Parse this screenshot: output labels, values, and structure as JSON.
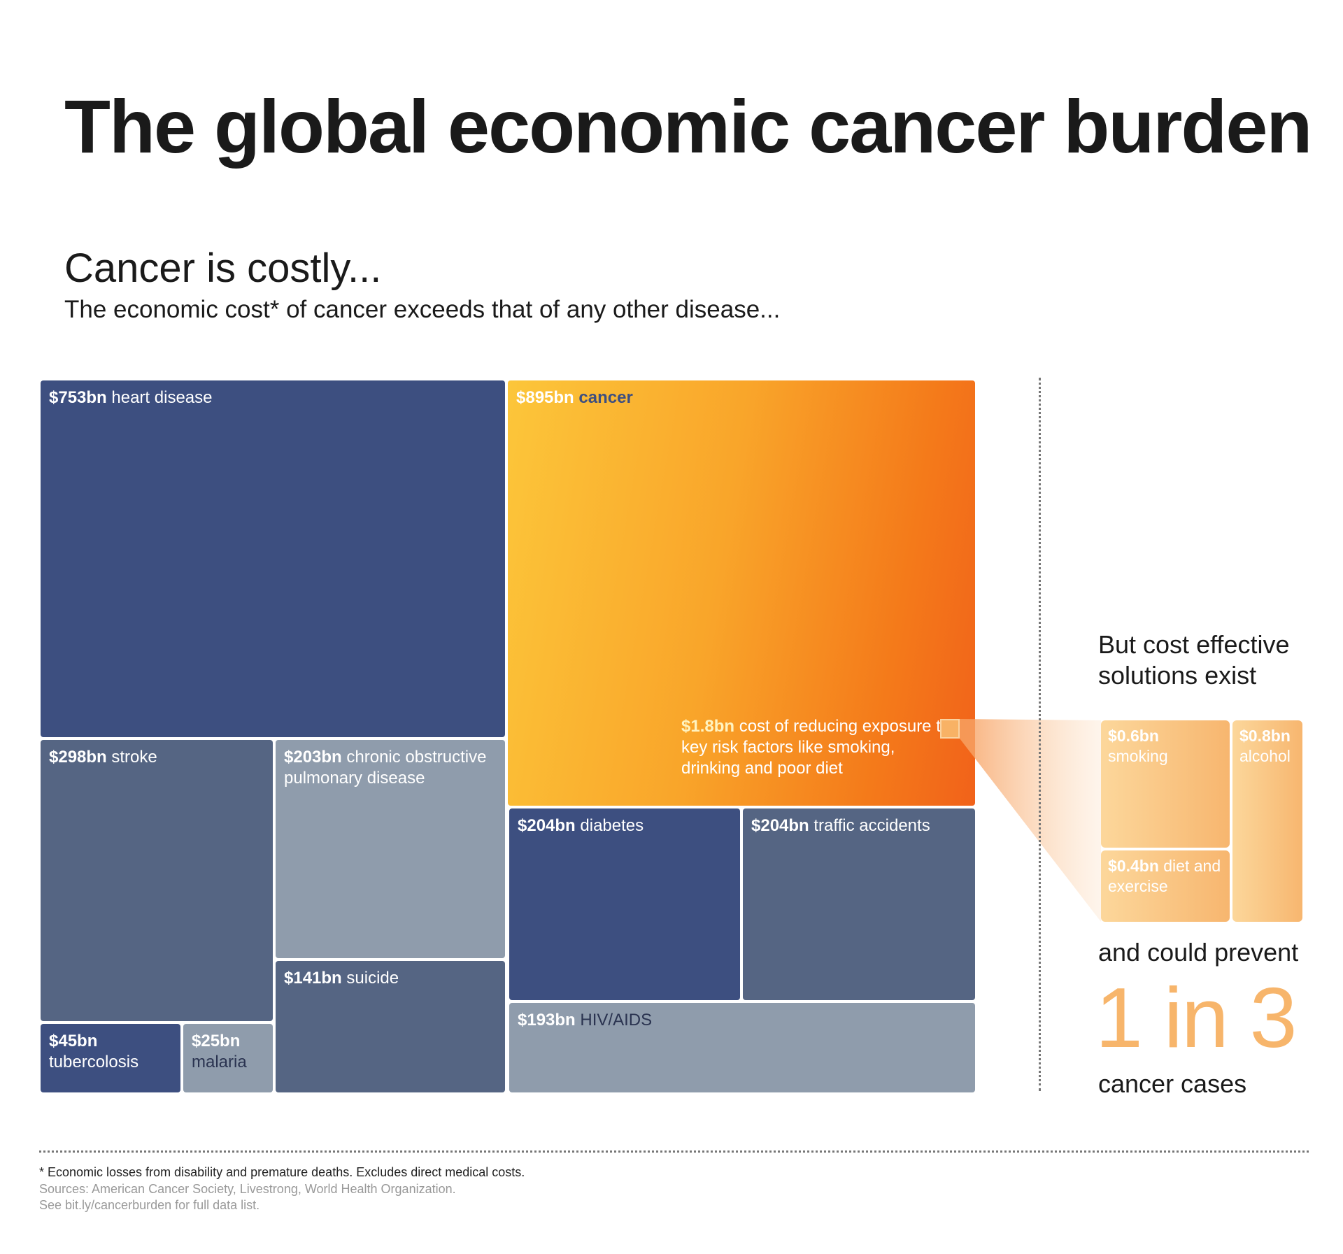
{
  "title": "The global economic cancer burden",
  "subtitle": "Cancer is costly...",
  "subtitle2": "The economic cost* of cancer exceeds that of any other disease...",
  "chart_data": {
    "type": "treemap",
    "unit": "$bn",
    "items": [
      {
        "amount": "$753bn",
        "label": "heart disease",
        "value": 753
      },
      {
        "amount": "$895bn",
        "label": "cancer",
        "value": 895
      },
      {
        "amount": "$298bn",
        "label": "stroke",
        "value": 298
      },
      {
        "amount": "$203bn",
        "label": "chronic obstructive pulmonary disease",
        "value": 203
      },
      {
        "amount": "$204bn",
        "label": "diabetes",
        "value": 204
      },
      {
        "amount": "$204bn",
        "label": "traffic accidents",
        "value": 204
      },
      {
        "amount": "$141bn",
        "label": "suicide",
        "value": 141
      },
      {
        "amount": "$193bn",
        "label": "HIV/AIDS",
        "value": 193
      },
      {
        "amount": "$45bn",
        "label": "tubercolosis",
        "value": 45
      },
      {
        "amount": "$25bn",
        "label": "malaria",
        "value": 25
      }
    ],
    "callout": {
      "amount": "$1.8bn",
      "label": "cost of reducing exposure to key risk factors like smoking, drinking and poor diet",
      "value": 1.8
    },
    "solutions": [
      {
        "amount": "$0.6bn",
        "label": "smoking",
        "value": 0.6
      },
      {
        "amount": "$0.8bn",
        "label": "alcohol",
        "value": 0.8
      },
      {
        "amount": "$0.4bn",
        "label": "diet and exercise",
        "value": 0.4
      }
    ]
  },
  "side": {
    "heading": "But cost effective solutions exist",
    "prevent": "and could prevent",
    "big": "1 in 3",
    "cases": "cancer cases"
  },
  "footer": {
    "note": "* Economic losses from disability and premature deaths. Excludes direct medical costs.",
    "sources": "Sources: American Cancer Society, Livestrong, World Health Organization.",
    "link": "See bit.ly/cancerburden for full data list."
  },
  "colors": {
    "dark_blue": "#3d4f80",
    "mid_blue": "#556583",
    "light_blue": "#8f9cac",
    "orange_start": "#fcc63a",
    "orange_end": "#f1621a",
    "peach": "#f7b56b"
  }
}
